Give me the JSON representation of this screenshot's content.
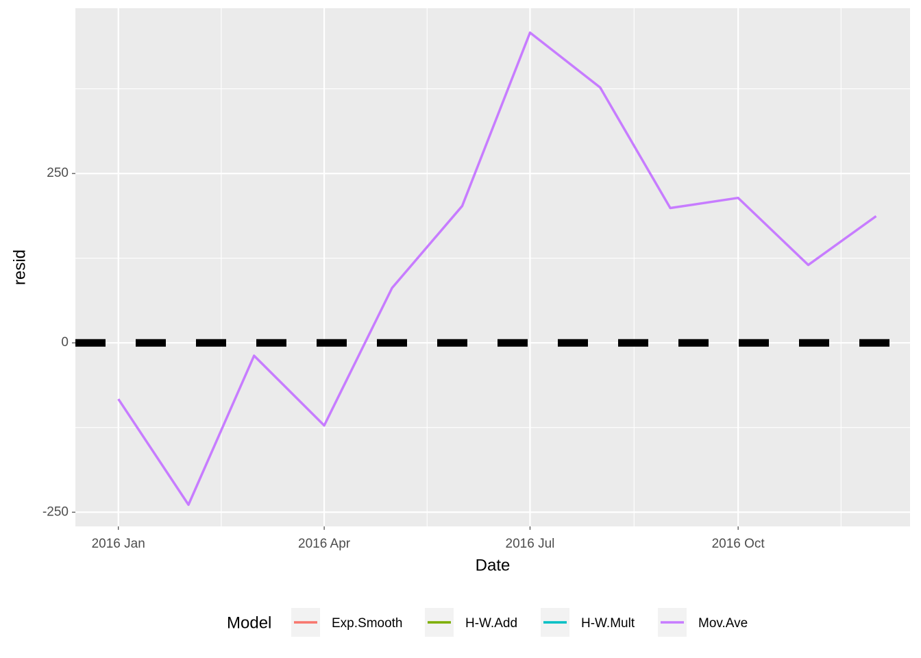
{
  "chart_data": {
    "type": "line",
    "x_label": "Date",
    "y_label": "resid",
    "x": [
      "2016-01",
      "2016-02",
      "2016-03",
      "2016-04",
      "2016-05",
      "2016-06",
      "2016-07",
      "2016-08",
      "2016-09",
      "2016-10",
      "2016-11",
      "2016-12"
    ],
    "series": [
      {
        "name": "Exp.Smooth",
        "color": "#F8766D",
        "values": [
          null,
          null,
          null,
          null,
          null,
          null,
          null,
          null,
          null,
          null,
          null,
          null
        ]
      },
      {
        "name": "H-W.Add",
        "color": "#7CAE00",
        "values": [
          null,
          null,
          null,
          null,
          null,
          null,
          null,
          null,
          null,
          null,
          null,
          null
        ]
      },
      {
        "name": "H-W.Mult",
        "color": "#00BFC4",
        "values": [
          null,
          null,
          null,
          null,
          null,
          null,
          null,
          null,
          null,
          null,
          null,
          null
        ]
      },
      {
        "name": "Mov.Ave",
        "color": "#C77CFF",
        "values": [
          -83,
          -239,
          -19,
          -122,
          81,
          202,
          458,
          377,
          199,
          214,
          115,
          187
        ]
      }
    ],
    "xlim": [
      "2015-12-13",
      "2016-12-16"
    ],
    "xticks": [
      {
        "value": "2016-01",
        "label": "2016 Jan"
      },
      {
        "value": "2016-04",
        "label": "2016 Apr"
      },
      {
        "value": "2016-07",
        "label": "2016 Jul"
      },
      {
        "value": "2016-10",
        "label": "2016 Oct"
      }
    ],
    "ylim": [
      -271,
      494
    ],
    "yticks": [
      -250,
      0,
      250
    ],
    "grid": true,
    "hline": 0,
    "legend_title": "Model",
    "legend_position": "bottom"
  }
}
